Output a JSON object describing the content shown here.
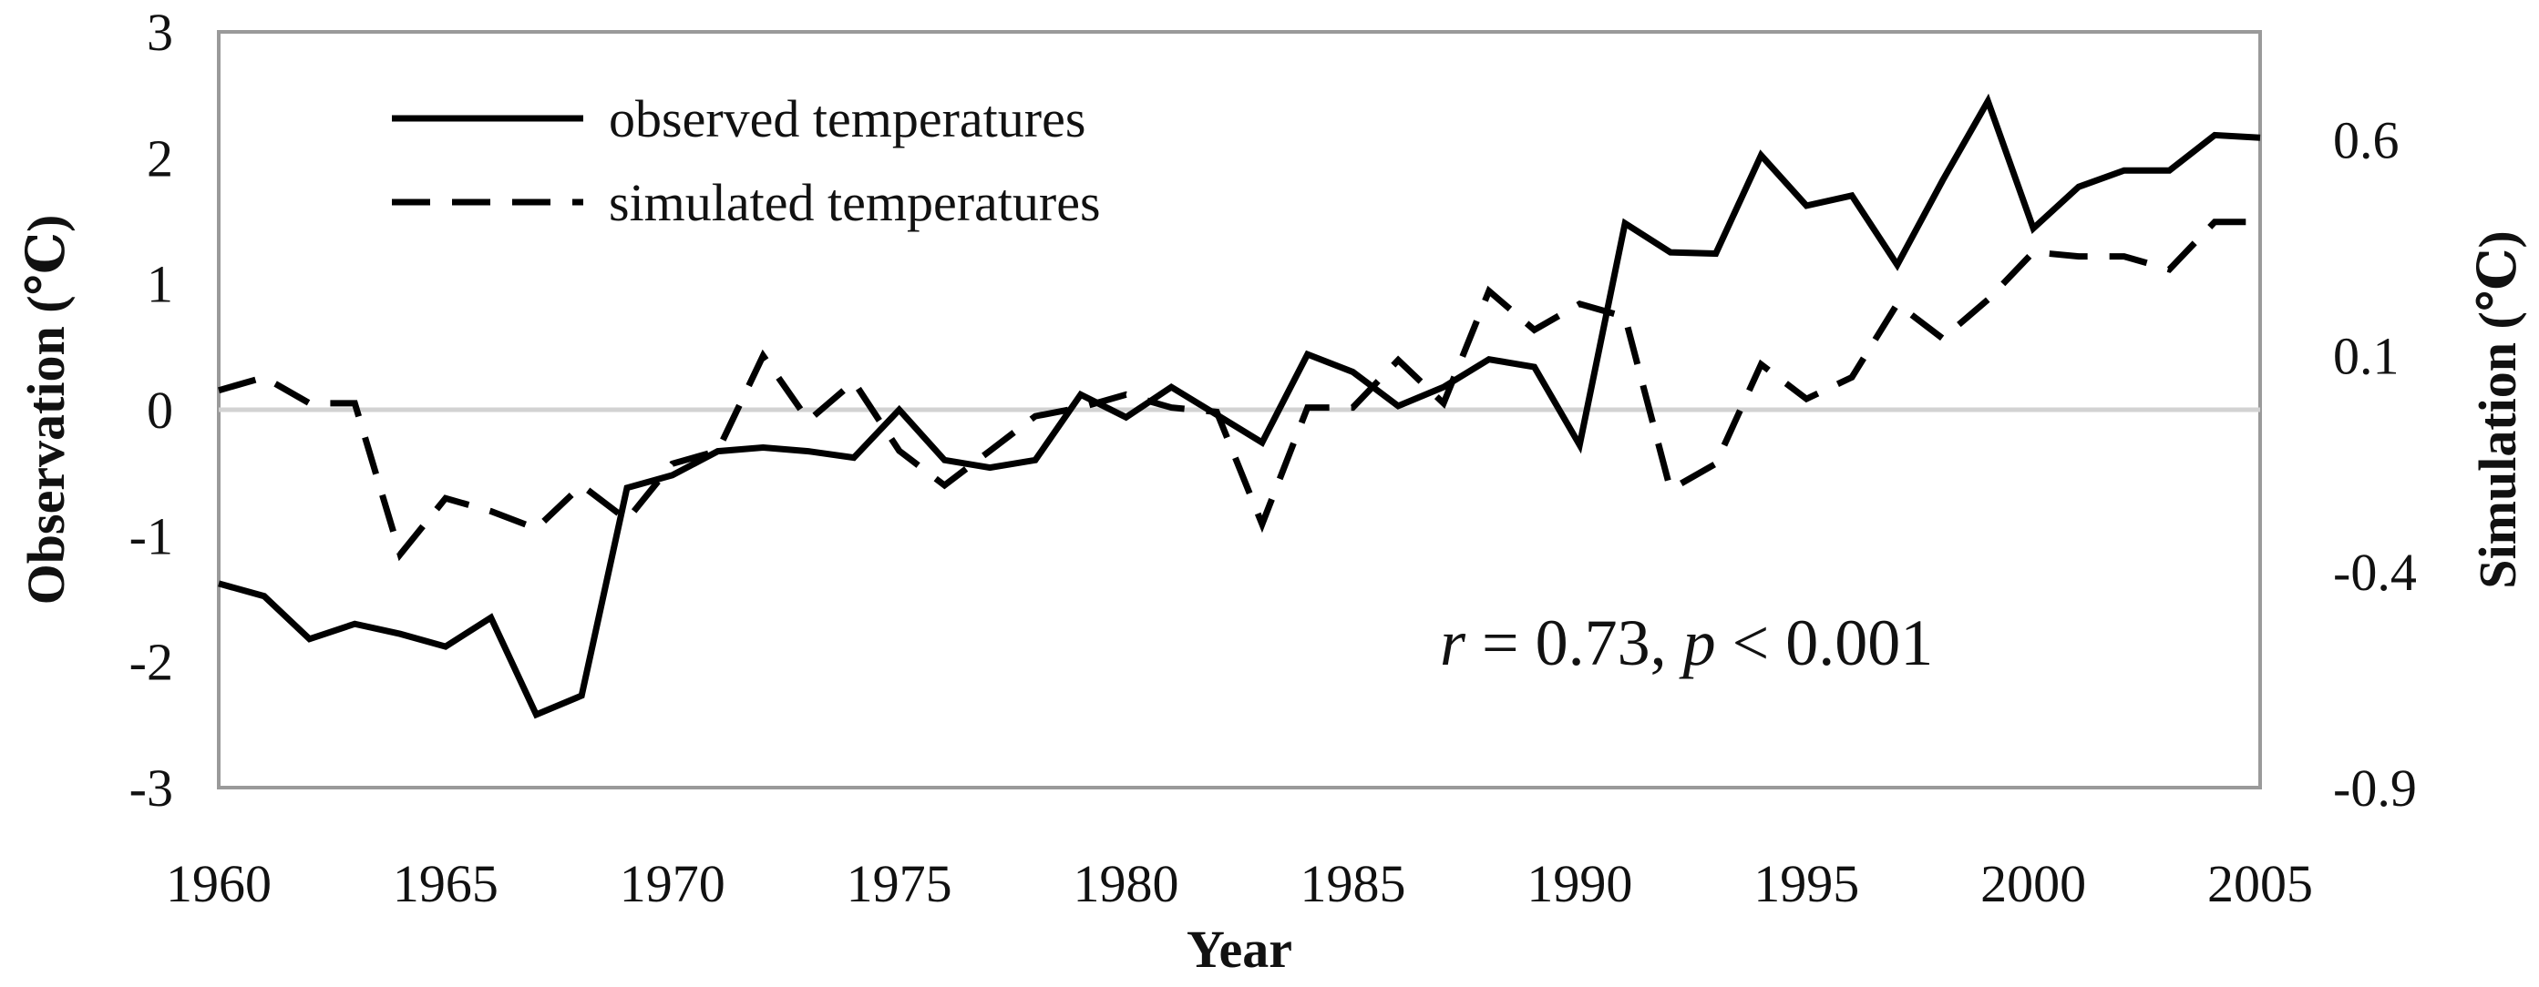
{
  "chart_data": {
    "type": "line",
    "title": "",
    "xlabel": "Year",
    "ylabel": "Observation (℃)",
    "y2label": "Simulation (℃)",
    "xlim": [
      1960,
      2005
    ],
    "ylim": [
      -3,
      3
    ],
    "y2lim": [
      -0.9,
      0.85
    ],
    "x_ticks": [
      "1960",
      "1965",
      "1970",
      "1975",
      "1980",
      "1985",
      "1990",
      "1995",
      "2000",
      "2005"
    ],
    "y_ticks": [
      "-3",
      "-2",
      "-1",
      "0",
      "1",
      "2",
      "3"
    ],
    "y2_ticks": [
      "-0.9",
      "-0.4",
      "0.1",
      "0.6"
    ],
    "legend_position": "top-left",
    "grid": false,
    "series": [
      {
        "name": "observed temperatures",
        "axis": "left",
        "style": "solid",
        "x": [
          1960,
          1961,
          1962,
          1963,
          1964,
          1965,
          1966,
          1967,
          1968,
          1969,
          1970,
          1971,
          1972,
          1973,
          1974,
          1975,
          1976,
          1977,
          1978,
          1979,
          1980,
          1981,
          1982,
          1983,
          1984,
          1985,
          1986,
          1987,
          1988,
          1989,
          1990,
          1991,
          1992,
          1993,
          1994,
          1995,
          1996,
          1997,
          1998,
          1999,
          2000,
          2001,
          2002,
          2003,
          2004,
          2005
        ],
        "values": [
          -1.38,
          -1.48,
          -1.82,
          -1.7,
          -1.78,
          -1.88,
          -1.65,
          -2.42,
          -2.27,
          -0.62,
          -0.52,
          -0.33,
          -0.3,
          -0.33,
          -0.38,
          0.0,
          -0.4,
          -0.46,
          -0.4,
          0.12,
          -0.06,
          0.18,
          -0.04,
          -0.26,
          0.44,
          0.3,
          0.03,
          0.18,
          0.4,
          0.34,
          -0.28,
          1.48,
          1.25,
          1.24,
          2.02,
          1.62,
          1.7,
          1.15,
          1.82,
          2.45,
          1.44,
          1.77,
          1.9,
          1.9,
          2.18,
          2.16
        ]
      },
      {
        "name": "simulated temperatures",
        "axis": "right",
        "style": "dashed",
        "x": [
          1960,
          1961,
          1962,
          1963,
          1964,
          1965,
          1966,
          1967,
          1968,
          1969,
          1970,
          1971,
          1972,
          1973,
          1974,
          1975,
          1976,
          1977,
          1978,
          1979,
          1980,
          1981,
          1982,
          1983,
          1984,
          1985,
          1986,
          1987,
          1988,
          1989,
          1990,
          1991,
          1992,
          1993,
          1994,
          1995,
          1996,
          1997,
          1998,
          1999,
          2000,
          2001,
          2002,
          2003,
          2004,
          2005
        ],
        "values": [
          0.02,
          0.05,
          -0.01,
          -0.01,
          -0.36,
          -0.23,
          -0.26,
          -0.3,
          -0.2,
          -0.28,
          -0.15,
          -0.12,
          0.1,
          -0.05,
          0.04,
          -0.12,
          -0.2,
          -0.12,
          -0.04,
          -0.02,
          0.01,
          -0.02,
          -0.03,
          -0.29,
          -0.02,
          -0.02,
          0.09,
          -0.01,
          0.25,
          0.16,
          0.22,
          0.19,
          -0.21,
          -0.15,
          0.08,
          0.0,
          0.05,
          0.22,
          0.14,
          0.23,
          0.34,
          0.33,
          0.33,
          0.3,
          0.41,
          0.41
        ]
      }
    ],
    "annotation": {
      "r_symbol": "r",
      "r_text": " = 0.73, ",
      "p_symbol": "p",
      "p_text": " < 0.001"
    }
  }
}
